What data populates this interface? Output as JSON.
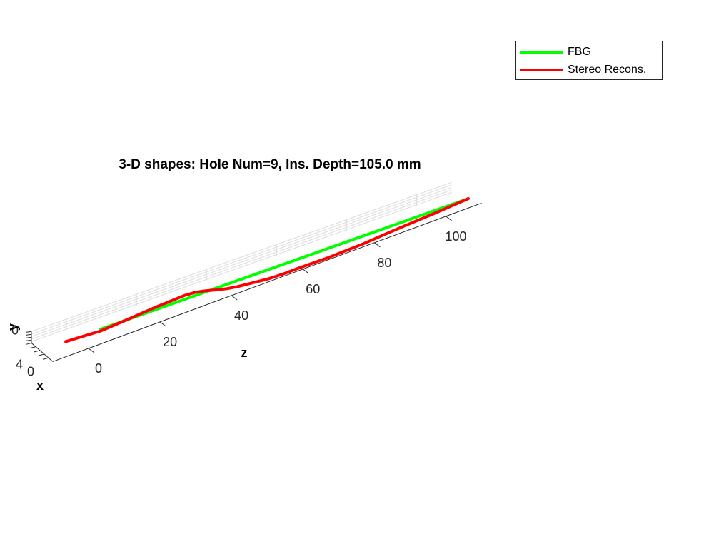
{
  "chart_data": {
    "type": "line",
    "projection": "3d",
    "title": "3-D shapes: Hole Num=9, Ins. Depth=105.0 mm",
    "xlabel": "x",
    "ylabel": "y",
    "zlabel": "z",
    "z_ticks": [
      0,
      20,
      40,
      60,
      80,
      100
    ],
    "x_ticks": [
      0,
      4
    ],
    "y_ticks": [
      0
    ],
    "grid": true,
    "legend_position": "top-right",
    "series": [
      {
        "name": "FBG",
        "color": "#00ff00",
        "points": [
          [
            0,
            0
          ],
          [
            105,
            0
          ]
        ]
      },
      {
        "name": "Stereo Recons.",
        "color": "#ff0000",
        "points": [
          [
            -10,
            0.0
          ],
          [
            0,
            0.25
          ],
          [
            6,
            0.05
          ],
          [
            12,
            -0.2
          ],
          [
            16,
            -0.35
          ],
          [
            20,
            -0.45
          ],
          [
            24,
            -0.55
          ],
          [
            27,
            -0.45
          ],
          [
            30,
            -0.15
          ],
          [
            33,
            0.25
          ],
          [
            36,
            0.6
          ],
          [
            39,
            0.85
          ],
          [
            42,
            1.0
          ],
          [
            45,
            1.15
          ],
          [
            48,
            1.3
          ],
          [
            52,
            1.35
          ],
          [
            56,
            1.3
          ],
          [
            60,
            1.3
          ],
          [
            65,
            1.3
          ],
          [
            70,
            1.2
          ],
          [
            75,
            1.1
          ],
          [
            80,
            0.9
          ],
          [
            85,
            0.7
          ],
          [
            90,
            0.55
          ],
          [
            95,
            0.4
          ],
          [
            100,
            0.2
          ],
          [
            105,
            0.0
          ]
        ]
      }
    ]
  }
}
